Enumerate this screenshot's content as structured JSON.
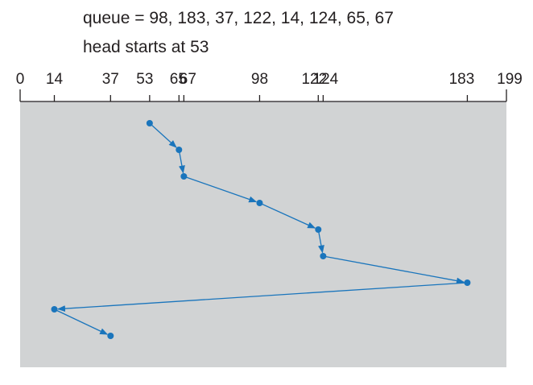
{
  "caption": {
    "queue_line": "queue = 98, 183, 37, 122, 14, 124, 65, 67",
    "head_line": "head starts at 53"
  },
  "axis": {
    "min": 0,
    "max": 199,
    "tick_labels": [
      "0",
      "14",
      "37",
      "53",
      "65",
      "67",
      "98",
      "122",
      "124",
      "183",
      "199"
    ]
  },
  "service_order": [
    53,
    65,
    67,
    98,
    122,
    124,
    183,
    14,
    37
  ],
  "colors": {
    "panel": "#d1d3d4",
    "path": "#1a75bc",
    "axis": "#231f20",
    "text": "#231f20"
  }
}
